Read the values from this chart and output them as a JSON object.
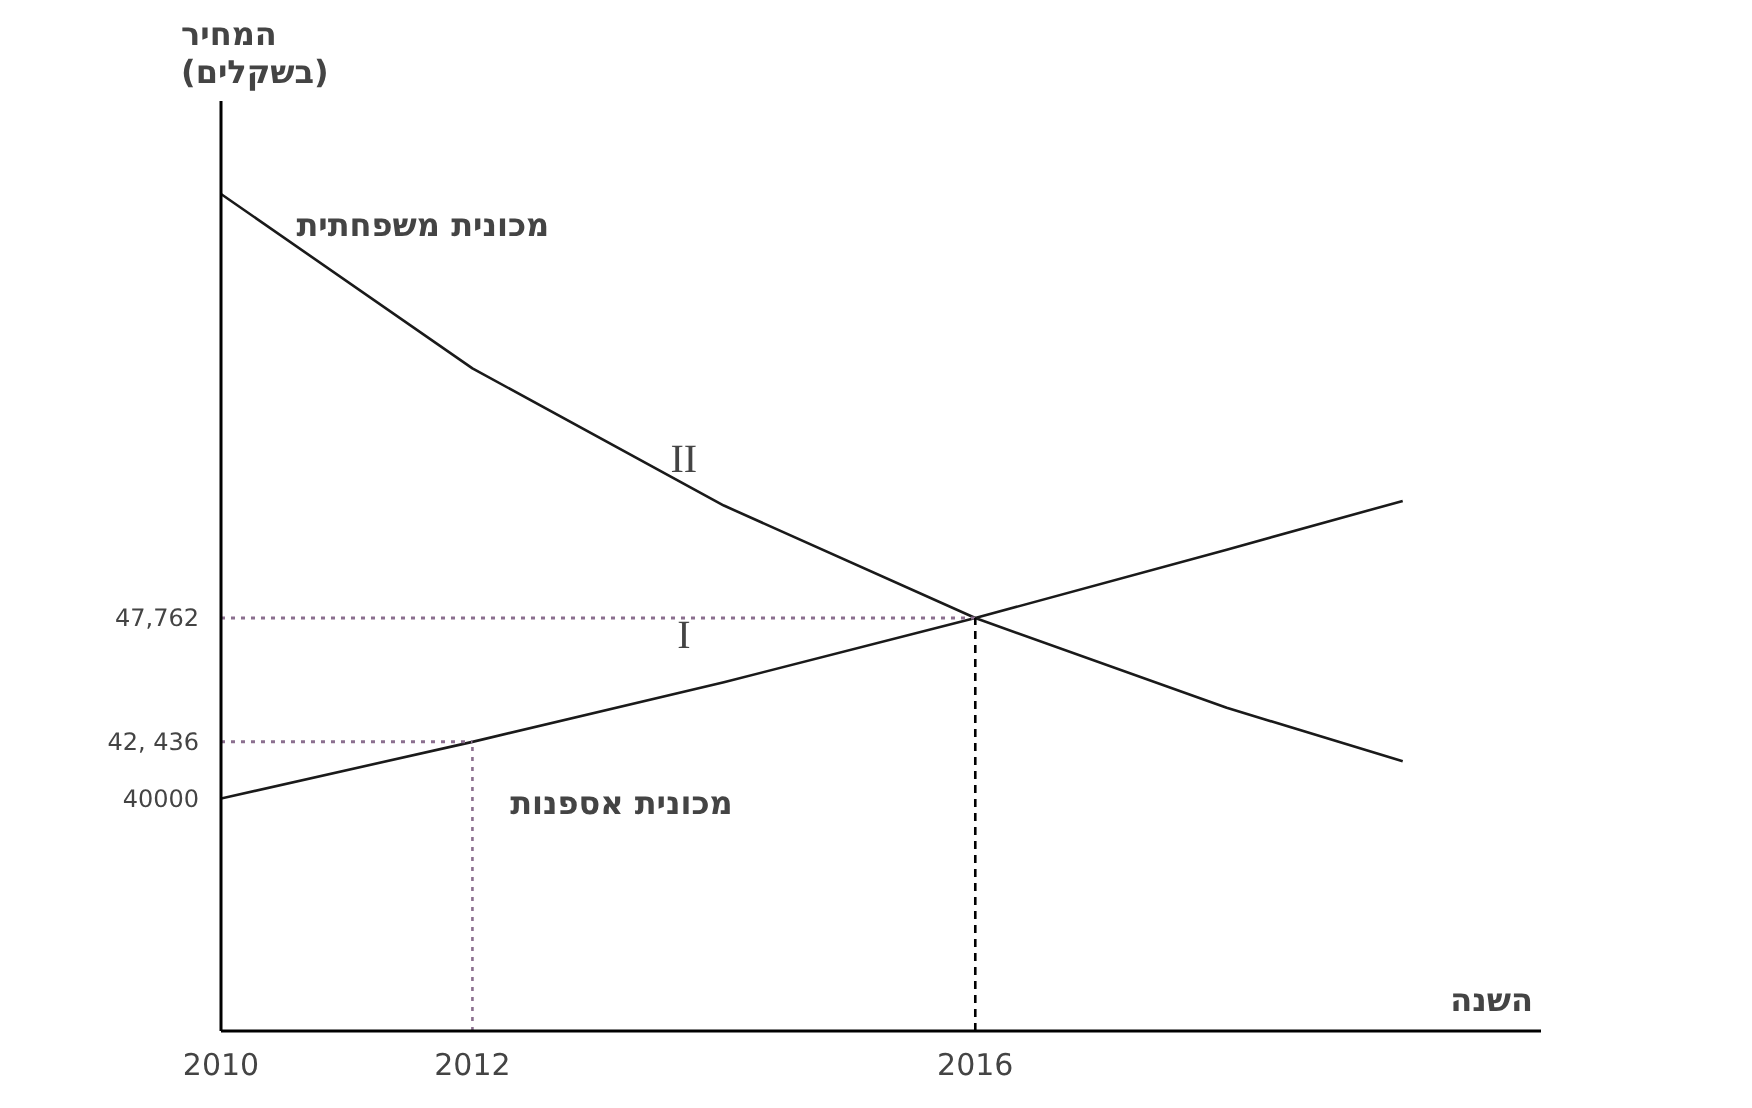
{
  "chart_data": {
    "type": "line",
    "ylabel": "המחיר\n(בשקלים)",
    "xlabel": "השנה",
    "xlim": [
      2010,
      2020.5
    ],
    "xticks": [
      2010,
      2012,
      2016
    ],
    "ylim": [
      30000,
      70000
    ],
    "yticks": [
      40000,
      {
        "value": 42436,
        "label": "42, 436"
      },
      {
        "value": 47762,
        "label": "47,762"
      }
    ],
    "series": [
      {
        "name": "מכונית אספנות",
        "color": "#1a1a1a",
        "x": [
          2010,
          2012,
          2014,
          2016,
          2018,
          2019.4
        ],
        "values": [
          40000,
          42436,
          45000,
          47762,
          50700,
          52800
        ]
      },
      {
        "name": "מכונית משפחתית",
        "color": "#1a1a1a",
        "x": [
          2010,
          2012,
          2014,
          2016,
          2018,
          2019.4
        ],
        "values": [
          66000,
          58500,
          52600,
          47762,
          43900,
          41600
        ]
      }
    ],
    "annotations": [
      "I",
      "II"
    ],
    "ref_lines": [
      {
        "axis": "y",
        "value": 47762,
        "label": null,
        "color": "#8b6f8f",
        "line_style": "dotted"
      },
      {
        "axis": "y",
        "value": 42436,
        "label": null,
        "color": "#8b6f8f",
        "line_style": "dotted"
      },
      {
        "axis": "x",
        "value": 2012,
        "label": null,
        "color": "#8b6f8f",
        "line_style": "dotted"
      },
      {
        "axis": "x",
        "value": 2016,
        "label": null,
        "color": "#000000",
        "line_style": "dashed"
      }
    ],
    "grid": false,
    "marker": "none",
    "line_style": "solid"
  }
}
